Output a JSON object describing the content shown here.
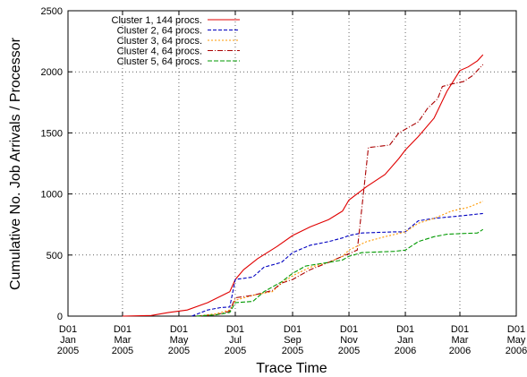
{
  "chart_data": {
    "type": "line",
    "xlabel": "Trace Time",
    "ylabel": "Cumulative No. Job Arrivals / Processor",
    "xlim": [
      "2005-01-01",
      "2006-05-01"
    ],
    "ylim": [
      0,
      2500
    ],
    "yticks": [
      0,
      500,
      1000,
      1500,
      2000,
      2500
    ],
    "xticks": [
      {
        "date": "2005-01-01",
        "lines": [
          "D01",
          "Jan",
          "2005"
        ]
      },
      {
        "date": "2005-03-01",
        "lines": [
          "D01",
          "Mar",
          "2005"
        ]
      },
      {
        "date": "2005-05-01",
        "lines": [
          "D01",
          "May",
          "2005"
        ]
      },
      {
        "date": "2005-07-01",
        "lines": [
          "D01",
          "Jul",
          "2005"
        ]
      },
      {
        "date": "2005-09-01",
        "lines": [
          "D01",
          "Sep",
          "2005"
        ]
      },
      {
        "date": "2005-11-01",
        "lines": [
          "D01",
          "Nov",
          "2005"
        ]
      },
      {
        "date": "2006-01-01",
        "lines": [
          "D01",
          "Jan",
          "2006"
        ]
      },
      {
        "date": "2006-03-01",
        "lines": [
          "D01",
          "Mar",
          "2006"
        ]
      },
      {
        "date": "2006-05-01",
        "lines": [
          "D01",
          "May",
          "2006"
        ]
      }
    ],
    "grid": true,
    "legend_position": "top-left",
    "series": [
      {
        "name": "Cluster 1, 144 procs.",
        "color": "#e00000",
        "dash": "solid",
        "points": [
          [
            "2005-03-01",
            0
          ],
          [
            "2005-04-01",
            5
          ],
          [
            "2005-04-20",
            30
          ],
          [
            "2005-05-10",
            50
          ],
          [
            "2005-06-01",
            110
          ],
          [
            "2005-06-25",
            200
          ],
          [
            "2005-07-01",
            300
          ],
          [
            "2005-07-10",
            380
          ],
          [
            "2005-07-25",
            470
          ],
          [
            "2005-08-15",
            570
          ],
          [
            "2005-09-01",
            660
          ],
          [
            "2005-09-20",
            730
          ],
          [
            "2005-10-10",
            790
          ],
          [
            "2005-10-25",
            860
          ],
          [
            "2005-11-01",
            950
          ],
          [
            "2005-11-20",
            1060
          ],
          [
            "2005-12-10",
            1160
          ],
          [
            "2005-12-25",
            1290
          ],
          [
            "2006-01-01",
            1360
          ],
          [
            "2006-01-15",
            1470
          ],
          [
            "2006-02-01",
            1620
          ],
          [
            "2006-02-15",
            1840
          ],
          [
            "2006-03-01",
            2010
          ],
          [
            "2006-03-10",
            2040
          ],
          [
            "2006-03-20",
            2090
          ],
          [
            "2006-03-26",
            2140
          ]
        ]
      },
      {
        "name": "Cluster 2, 64 procs.",
        "color": "#0000c0",
        "dash": "4 2",
        "points": [
          [
            "2005-05-15",
            0
          ],
          [
            "2005-06-01",
            50
          ],
          [
            "2005-06-15",
            70
          ],
          [
            "2005-06-25",
            75
          ],
          [
            "2005-07-01",
            300
          ],
          [
            "2005-07-20",
            320
          ],
          [
            "2005-08-01",
            400
          ],
          [
            "2005-08-20",
            440
          ],
          [
            "2005-09-01",
            520
          ],
          [
            "2005-09-20",
            580
          ],
          [
            "2005-10-10",
            610
          ],
          [
            "2005-10-25",
            640
          ],
          [
            "2005-11-01",
            660
          ],
          [
            "2005-11-15",
            680
          ],
          [
            "2005-12-20",
            690
          ],
          [
            "2006-01-01",
            690
          ],
          [
            "2006-01-15",
            780
          ],
          [
            "2006-02-01",
            800
          ],
          [
            "2006-02-15",
            810
          ],
          [
            "2006-03-01",
            820
          ],
          [
            "2006-03-26",
            840
          ]
        ]
      },
      {
        "name": "Cluster 3, 64 procs.",
        "color": "#ff9900",
        "dash": "2 2",
        "points": [
          [
            "2005-05-20",
            0
          ],
          [
            "2005-06-10",
            20
          ],
          [
            "2005-06-25",
            50
          ],
          [
            "2005-07-01",
            130
          ],
          [
            "2005-07-20",
            170
          ],
          [
            "2005-08-10",
            200
          ],
          [
            "2005-08-20",
            270
          ],
          [
            "2005-09-01",
            330
          ],
          [
            "2005-09-20",
            400
          ],
          [
            "2005-10-10",
            440
          ],
          [
            "2005-10-25",
            490
          ],
          [
            "2005-11-01",
            540
          ],
          [
            "2005-11-20",
            610
          ],
          [
            "2005-12-10",
            650
          ],
          [
            "2006-01-01",
            690
          ],
          [
            "2006-01-15",
            760
          ],
          [
            "2006-02-01",
            800
          ],
          [
            "2006-02-20",
            860
          ],
          [
            "2006-03-10",
            890
          ],
          [
            "2006-03-26",
            940
          ]
        ]
      },
      {
        "name": "Cluster 4, 64 procs.",
        "color": "#aa0000",
        "dash": "6 2 1 2",
        "points": [
          [
            "2005-05-20",
            0
          ],
          [
            "2005-06-10",
            10
          ],
          [
            "2005-06-25",
            40
          ],
          [
            "2005-07-01",
            150
          ],
          [
            "2005-07-20",
            170
          ],
          [
            "2005-08-10",
            210
          ],
          [
            "2005-08-20",
            270
          ],
          [
            "2005-09-01",
            300
          ],
          [
            "2005-09-20",
            380
          ],
          [
            "2005-10-10",
            440
          ],
          [
            "2005-10-25",
            490
          ],
          [
            "2005-11-10",
            540
          ],
          [
            "2005-11-18",
            1100
          ],
          [
            "2005-11-22",
            1380
          ],
          [
            "2005-12-15",
            1400
          ],
          [
            "2005-12-25",
            1500
          ],
          [
            "2006-01-15",
            1590
          ],
          [
            "2006-01-25",
            1700
          ],
          [
            "2006-02-05",
            1780
          ],
          [
            "2006-02-10",
            1880
          ],
          [
            "2006-02-20",
            1900
          ],
          [
            "2006-03-05",
            1920
          ],
          [
            "2006-03-15",
            1970
          ],
          [
            "2006-03-26",
            2060
          ]
        ]
      },
      {
        "name": "Cluster 5, 64 procs.",
        "color": "#009900",
        "dash": "5 2",
        "points": [
          [
            "2005-05-20",
            0
          ],
          [
            "2005-06-10",
            10
          ],
          [
            "2005-06-25",
            30
          ],
          [
            "2005-07-01",
            110
          ],
          [
            "2005-07-20",
            120
          ],
          [
            "2005-08-01",
            200
          ],
          [
            "2005-08-20",
            280
          ],
          [
            "2005-09-01",
            350
          ],
          [
            "2005-09-15",
            410
          ],
          [
            "2005-10-10",
            440
          ],
          [
            "2005-10-25",
            460
          ],
          [
            "2005-11-01",
            490
          ],
          [
            "2005-11-15",
            520
          ],
          [
            "2005-12-20",
            530
          ],
          [
            "2006-01-01",
            540
          ],
          [
            "2006-01-15",
            610
          ],
          [
            "2006-02-01",
            650
          ],
          [
            "2006-02-15",
            670
          ],
          [
            "2006-03-01",
            675
          ],
          [
            "2006-03-20",
            680
          ],
          [
            "2006-03-26",
            710
          ]
        ]
      }
    ]
  }
}
